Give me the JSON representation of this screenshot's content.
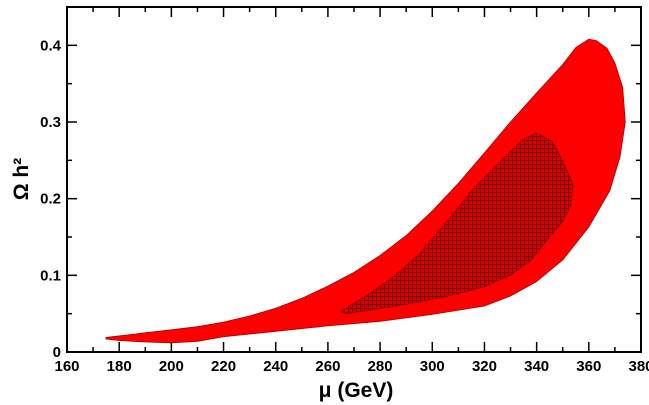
{
  "chart_data": {
    "type": "area",
    "xlabel": "μ (GeV)",
    "ylabel": "Ω h²",
    "xlim": [
      160,
      380
    ],
    "ylim": [
      0,
      0.45
    ],
    "x_ticks": [
      "160",
      "180",
      "200",
      "220",
      "240",
      "260",
      "280",
      "300",
      "320",
      "340",
      "360",
      "380"
    ],
    "y_ticks": [
      "0",
      "0.1",
      "0.2",
      "0.3",
      "0.4"
    ],
    "grid": false,
    "series": [
      {
        "style": "solid",
        "color": "#ff0000",
        "points": [
          [
            175,
            0.019
          ],
          [
            180,
            0.021
          ],
          [
            190,
            0.025
          ],
          [
            200,
            0.029
          ],
          [
            210,
            0.033
          ],
          [
            220,
            0.039
          ],
          [
            230,
            0.047
          ],
          [
            240,
            0.057
          ],
          [
            250,
            0.07
          ],
          [
            260,
            0.086
          ],
          [
            270,
            0.104
          ],
          [
            280,
            0.126
          ],
          [
            290,
            0.152
          ],
          [
            300,
            0.184
          ],
          [
            310,
            0.22
          ],
          [
            320,
            0.26
          ],
          [
            330,
            0.3
          ],
          [
            340,
            0.338
          ],
          [
            350,
            0.375
          ],
          [
            355,
            0.397
          ],
          [
            360,
            0.408
          ],
          [
            363,
            0.406
          ],
          [
            367,
            0.396
          ],
          [
            370,
            0.377
          ],
          [
            373,
            0.345
          ],
          [
            374,
            0.3
          ],
          [
            372,
            0.255
          ],
          [
            368,
            0.21
          ],
          [
            360,
            0.163
          ],
          [
            350,
            0.12
          ],
          [
            340,
            0.092
          ],
          [
            330,
            0.073
          ],
          [
            320,
            0.06
          ],
          [
            300,
            0.049
          ],
          [
            280,
            0.04
          ],
          [
            260,
            0.034
          ],
          [
            240,
            0.027
          ],
          [
            220,
            0.02
          ],
          [
            210,
            0.014
          ],
          [
            200,
            0.012
          ],
          [
            190,
            0.013
          ],
          [
            180,
            0.015
          ],
          [
            175,
            0.017
          ]
        ]
      },
      {
        "style": "hatched",
        "color": "#cc0000",
        "points": [
          [
            265,
            0.052
          ],
          [
            268,
            0.06
          ],
          [
            275,
            0.074
          ],
          [
            285,
            0.098
          ],
          [
            295,
            0.128
          ],
          [
            305,
            0.168
          ],
          [
            315,
            0.21
          ],
          [
            325,
            0.245
          ],
          [
            335,
            0.278
          ],
          [
            340,
            0.286
          ],
          [
            346,
            0.275
          ],
          [
            350,
            0.25
          ],
          [
            354,
            0.218
          ],
          [
            353,
            0.19
          ],
          [
            350,
            0.17
          ],
          [
            345,
            0.15
          ],
          [
            338,
            0.12
          ],
          [
            330,
            0.1
          ],
          [
            320,
            0.085
          ],
          [
            305,
            0.072
          ],
          [
            290,
            0.062
          ],
          [
            275,
            0.054
          ],
          [
            267,
            0.05
          ]
        ]
      }
    ]
  }
}
